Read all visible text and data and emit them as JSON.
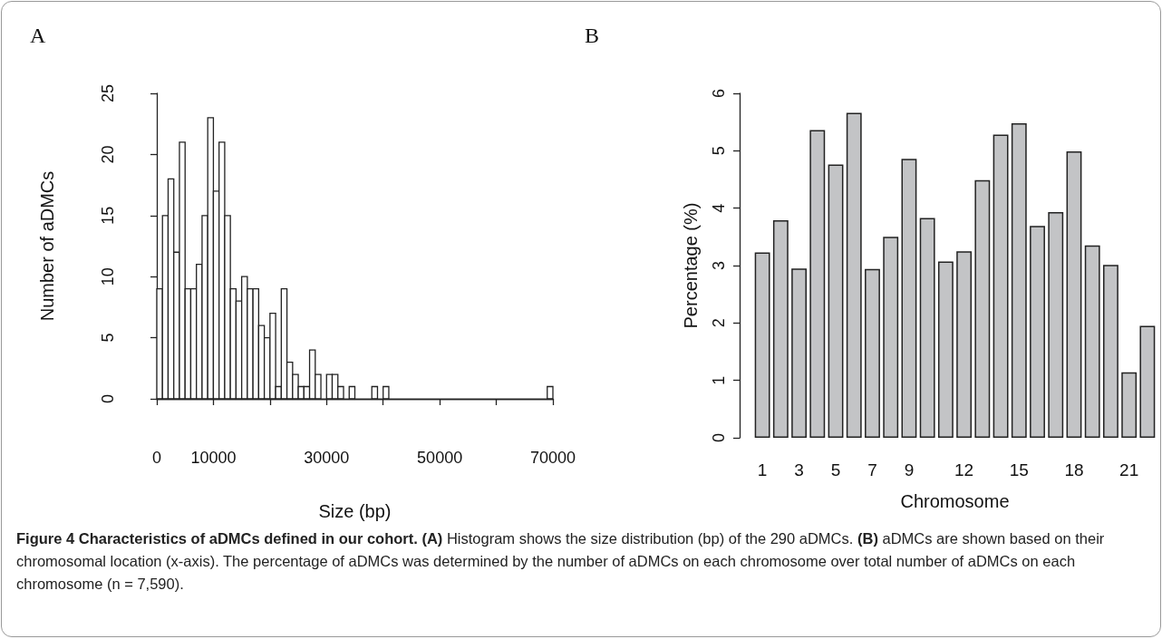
{
  "chart_data": [
    {
      "type": "histogram",
      "title": "A",
      "xlabel": "Size (bp)",
      "ylabel": "Number of aDMCs",
      "color": "#ffffff",
      "bins": [
        0,
        1000,
        2000,
        3000,
        4000,
        5000,
        6000,
        7000,
        8000,
        9000,
        10000,
        11000,
        12000,
        13000,
        14000,
        15000,
        16000,
        17000,
        18000,
        19000,
        20000,
        21000,
        22000,
        23000,
        24000,
        25000,
        26000,
        27000,
        28000,
        29000,
        30000,
        31000,
        32000,
        33000,
        34000,
        35000,
        36000,
        37000,
        38000,
        39000,
        40000,
        41000,
        42000,
        43000,
        44000,
        45000,
        46000,
        47000,
        48000,
        49000,
        50000,
        51000,
        52000,
        53000,
        54000,
        55000,
        56000,
        57000,
        58000,
        59000,
        60000,
        61000,
        62000,
        63000,
        64000,
        65000,
        66000,
        67000,
        68000,
        69000,
        70000
      ],
      "values": [
        9,
        15,
        18,
        12,
        21,
        9,
        9,
        11,
        15,
        23,
        17,
        21,
        15,
        9,
        8,
        10,
        9,
        9,
        6,
        5,
        7,
        1,
        9,
        3,
        2,
        1,
        1,
        4,
        2,
        0,
        2,
        2,
        1,
        0,
        1,
        0,
        0,
        0,
        1,
        0,
        1,
        0,
        0,
        0,
        0,
        0,
        0,
        0,
        0,
        0,
        0,
        0,
        0,
        0,
        0,
        0,
        0,
        0,
        0,
        0,
        0,
        0,
        0,
        0,
        0,
        0,
        0,
        0,
        0,
        1
      ],
      "xlim": [
        0,
        70000
      ],
      "xticks": [
        0,
        10000,
        {
          "value": 20000,
          "label": null
        },
        30000,
        {
          "value": 40000,
          "label": null
        },
        50000,
        {
          "value": 60000,
          "label": null
        },
        70000
      ],
      "ylim": [
        0,
        25
      ],
      "yticks": [
        0,
        5,
        10,
        15,
        20,
        25
      ],
      "annotations": [
        "Figure 4 Characteristics of aDMCs defined in our cohort.",
        "(A)",
        "Histogram shows the size distribution (bp) of the 290 aDMCs.",
        "(B)",
        "aDMCs are shown based on their chromosomal location (x-axis). The percentage of aDMCs was determined by the number of aDMCs on each chromosome over total number of aDMCs on each chromosome (n = 7,590)."
      ]
    },
    {
      "type": "bar",
      "title": "B",
      "xlabel": "Chromosome",
      "ylabel": "Percentage (%)",
      "color": "#c3c4c6",
      "categories": [
        "1",
        null,
        "3",
        null,
        "5",
        null,
        "7",
        null,
        "9",
        null,
        null,
        "12",
        null,
        null,
        "15",
        null,
        null,
        "18",
        null,
        null,
        "21",
        null
      ],
      "values": [
        3.23,
        3.79,
        2.95,
        5.36,
        4.76,
        5.66,
        2.94,
        3.5,
        4.86,
        3.83,
        3.07,
        3.25,
        4.49,
        5.28,
        5.48,
        3.69,
        3.93,
        4.99,
        3.35,
        3.01,
        1.14,
        1.95
      ],
      "ylim": [
        0,
        6
      ],
      "yticks": [
        0,
        1,
        2,
        3,
        4,
        5,
        6
      ]
    }
  ]
}
